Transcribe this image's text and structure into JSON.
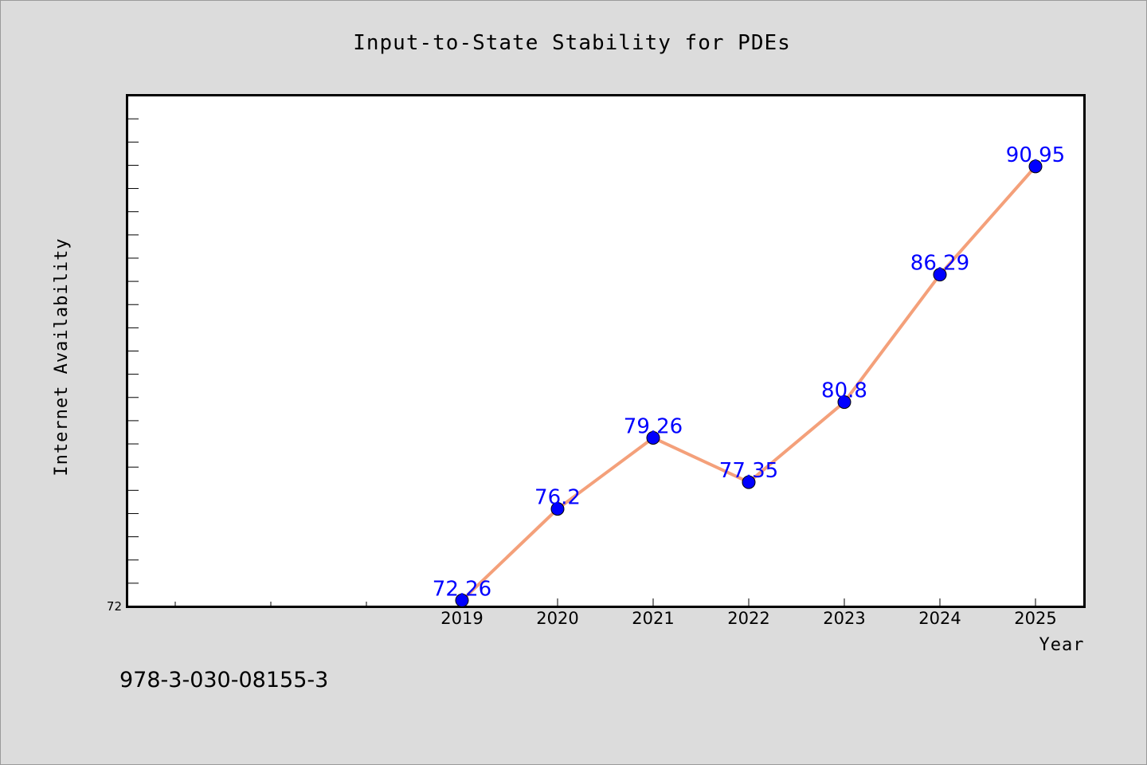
{
  "chart_data": {
    "type": "line",
    "title": "Input-to-State Stability for PDEs",
    "xlabel": "Year",
    "ylabel": "Internet Availability",
    "x": [
      "2019",
      "2020",
      "2021",
      "2022",
      "2023",
      "2024",
      "2025"
    ],
    "series": [
      {
        "values": [
          72.26,
          76.2,
          79.26,
          77.35,
          80.8,
          86.29,
          90.95
        ],
        "data_labels": [
          "72.26",
          "76.2",
          "79.26",
          "77.35",
          "80.8",
          "86.29",
          "90.95"
        ],
        "line_color": "#f4a07a",
        "marker_color": "#0000ff"
      }
    ],
    "y_tick_label": "72",
    "ylim": [
      72,
      94
    ],
    "x_axis_start_year": 2015.5,
    "grid": false,
    "legend": "none"
  },
  "footer_text": "978-3-030-08155-3",
  "colors": {
    "background": "#dcdcdc",
    "plot_background": "#ffffff",
    "line": "#f4a07a",
    "marker": "#0000ff",
    "data_label": "#0000ff"
  }
}
